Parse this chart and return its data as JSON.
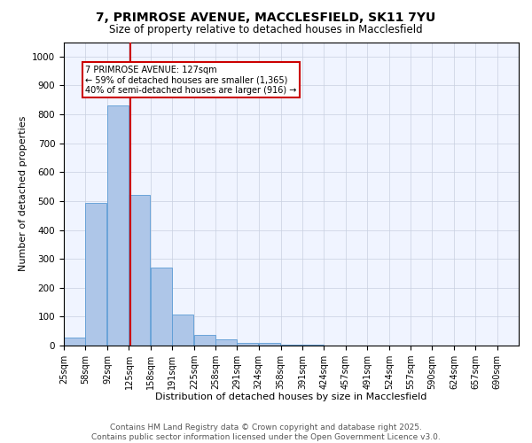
{
  "title1": "7, PRIMROSE AVENUE, MACCLESFIELD, SK11 7YU",
  "title2": "Size of property relative to detached houses in Macclesfield",
  "xlabel": "Distribution of detached houses by size in Macclesfield",
  "ylabel": "Number of detached properties",
  "bins": [
    25,
    58,
    92,
    125,
    158,
    191,
    225,
    258,
    291,
    324,
    358,
    391,
    424,
    457,
    491,
    524,
    557,
    590,
    624,
    657,
    690
  ],
  "values": [
    28,
    493,
    830,
    520,
    270,
    108,
    38,
    22,
    10,
    8,
    3,
    2,
    0,
    0,
    0,
    0,
    0,
    0,
    0,
    0
  ],
  "bar_color": "#aec6e8",
  "bar_edge_color": "#5b9bd5",
  "vline_x": 127,
  "vline_color": "#cc0000",
  "ylim": [
    0,
    1050
  ],
  "yticks": [
    0,
    100,
    200,
    300,
    400,
    500,
    600,
    700,
    800,
    900,
    1000
  ],
  "annotation_text": "7 PRIMROSE AVENUE: 127sqm\n← 59% of detached houses are smaller (1,365)\n40% of semi-detached houses are larger (916) →",
  "annotation_box_color": "#ffffff",
  "annotation_border_color": "#cc0000",
  "footer_text": "Contains HM Land Registry data © Crown copyright and database right 2025.\nContains public sector information licensed under the Open Government Licence v3.0.",
  "bg_color": "#f0f4ff",
  "grid_color": "#c8d0e0",
  "title1_fontsize": 10,
  "title2_fontsize": 8.5,
  "xlabel_fontsize": 8,
  "ylabel_fontsize": 8,
  "footer_fontsize": 6.5,
  "tick_fontsize": 7,
  "ytick_fontsize": 7.5
}
